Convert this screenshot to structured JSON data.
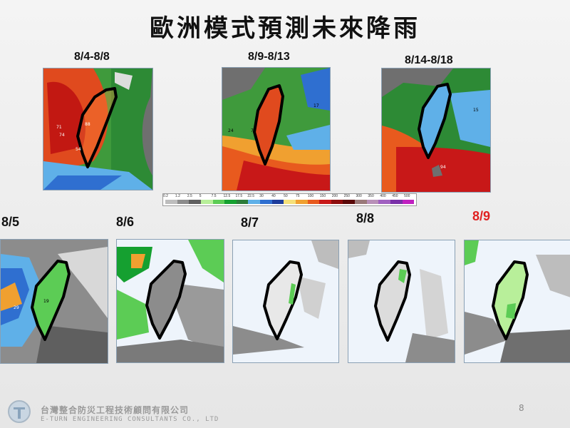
{
  "slide": {
    "title": "歐洲模式預測未來降雨",
    "page_number": "8"
  },
  "periods": [
    {
      "label": "8/4-8/8",
      "station_values": [
        "71",
        "74",
        "88",
        "54"
      ]
    },
    {
      "label": "8/9-8/13",
      "station_values": [
        "24",
        "17",
        "78"
      ]
    },
    {
      "label": "8/14-8/18",
      "station_values": [
        "15",
        "94"
      ]
    }
  ],
  "days": [
    {
      "label": "8/5",
      "color": "#111111",
      "station_values": [
        "29",
        "19"
      ]
    },
    {
      "label": "8/6",
      "color": "#111111",
      "station_values": []
    },
    {
      "label": "8/7",
      "color": "#111111",
      "station_values": []
    },
    {
      "label": "8/8",
      "color": "#111111",
      "station_values": []
    },
    {
      "label": "8/9",
      "color": "#e02020",
      "station_values": []
    }
  ],
  "legend": {
    "ticks": [
      "0.2",
      "1.2",
      "2.5",
      "5",
      "7.5",
      "12.5",
      "17.5",
      "22.5",
      "30",
      "40",
      "50",
      "75",
      "100",
      "150",
      "200",
      "250",
      "300",
      "350",
      "400",
      "450",
      "500"
    ],
    "colors": [
      "#bdbdbd",
      "#8c8c8c",
      "#5f5f5f",
      "#b8ef9a",
      "#5ccc55",
      "#15a030",
      "#2c7d3a",
      "#5fb0e8",
      "#2f6fd0",
      "#1c3c9c",
      "#f5e07a",
      "#f0a030",
      "#e85a1e",
      "#c81818",
      "#8e0c0c",
      "#5a0808",
      "#9a7a7a",
      "#b890b8",
      "#a060c0",
      "#7a30a8",
      "#c020c0"
    ]
  },
  "footer": {
    "company_cn": "台灣整合防災工程技術顧問有限公司",
    "company_en": "E-TURN ENGINEERING CONSULTANTS CO., LTD"
  }
}
